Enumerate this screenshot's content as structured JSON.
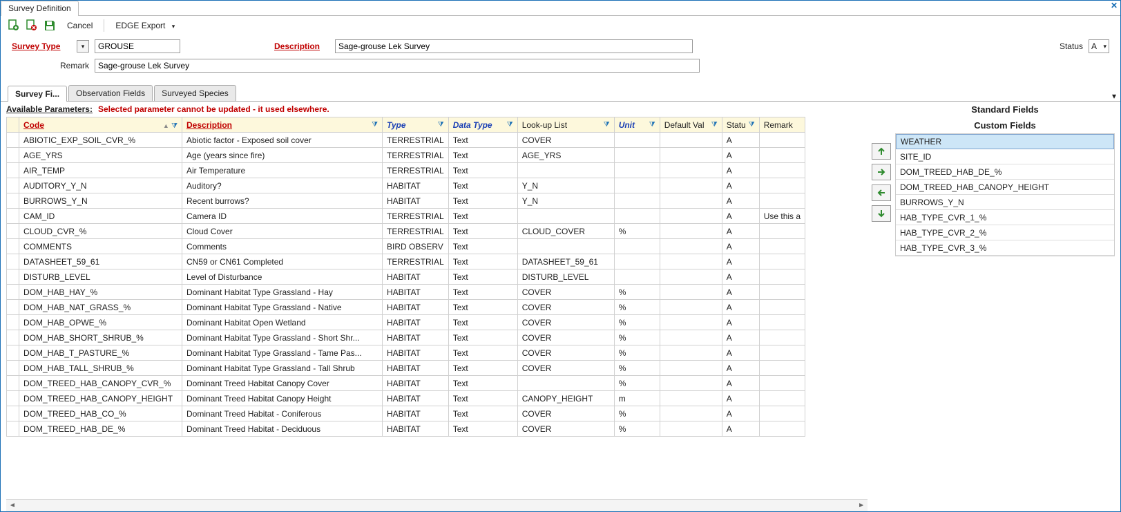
{
  "window": {
    "title": "Survey Definition"
  },
  "toolbar": {
    "cancel": "Cancel",
    "edge_export": "EDGE Export"
  },
  "form": {
    "survey_type_label": "Survey Type",
    "survey_type_value": "GROUSE",
    "description_label": "Description",
    "description_value": "Sage-grouse Lek Survey",
    "remark_label": "Remark",
    "remark_value": "Sage-grouse Lek Survey",
    "status_label": "Status",
    "status_value": "A"
  },
  "tabs": {
    "t1": "Survey Fi...",
    "t2": "Observation Fields",
    "t3": "Surveyed Species"
  },
  "available_parameters_label": "Available Parameters:",
  "warning_text": "Selected parameter cannot be updated - it used elsewhere.",
  "headers": {
    "code": "Code",
    "description": "Description",
    "type": "Type",
    "data_type": "Data Type",
    "lookup": "Look-up List",
    "unit": "Unit",
    "default_val": "Default Val",
    "status": "Statu",
    "remark": "Remark"
  },
  "rows": [
    {
      "code": "ABIOTIC_EXP_SOIL_CVR_%",
      "desc": "Abiotic factor - Exposed soil cover",
      "type": "TERRESTRIAL",
      "dtype": "Text",
      "lookup": "COVER",
      "unit": "",
      "defval": "",
      "status": "A",
      "remark": ""
    },
    {
      "code": "AGE_YRS",
      "desc": "Age (years since fire)",
      "type": "TERRESTRIAL",
      "dtype": "Text",
      "lookup": "AGE_YRS",
      "unit": "",
      "defval": "",
      "status": "A",
      "remark": ""
    },
    {
      "code": "AIR_TEMP",
      "desc": "Air Temperature",
      "type": "TERRESTRIAL",
      "dtype": "Text",
      "lookup": "",
      "unit": "",
      "defval": "",
      "status": "A",
      "remark": ""
    },
    {
      "code": "AUDITORY_Y_N",
      "desc": "Auditory?",
      "type": "HABITAT",
      "dtype": "Text",
      "lookup": "Y_N",
      "unit": "",
      "defval": "",
      "status": "A",
      "remark": ""
    },
    {
      "code": "BURROWS_Y_N",
      "desc": "Recent burrows?",
      "type": "HABITAT",
      "dtype": "Text",
      "lookup": "Y_N",
      "unit": "",
      "defval": "",
      "status": "A",
      "remark": ""
    },
    {
      "code": "CAM_ID",
      "desc": "Camera ID",
      "type": "TERRESTRIAL",
      "dtype": "Text",
      "lookup": "",
      "unit": "",
      "defval": "",
      "status": "A",
      "remark": "Use this a"
    },
    {
      "code": "CLOUD_CVR_%",
      "desc": "Cloud Cover",
      "type": "TERRESTRIAL",
      "dtype": "Text",
      "lookup": "CLOUD_COVER",
      "unit": "%",
      "defval": "",
      "status": "A",
      "remark": ""
    },
    {
      "code": "COMMENTS",
      "desc": "Comments",
      "type": "BIRD OBSERV",
      "dtype": "Text",
      "lookup": "",
      "unit": "",
      "defval": "",
      "status": "A",
      "remark": ""
    },
    {
      "code": "DATASHEET_59_61",
      "desc": "CN59 or CN61 Completed",
      "type": "TERRESTRIAL",
      "dtype": "Text",
      "lookup": "DATASHEET_59_61",
      "unit": "",
      "defval": "",
      "status": "A",
      "remark": ""
    },
    {
      "code": "DISTURB_LEVEL",
      "desc": "Level of Disturbance",
      "type": "HABITAT",
      "dtype": "Text",
      "lookup": "DISTURB_LEVEL",
      "unit": "",
      "defval": "",
      "status": "A",
      "remark": ""
    },
    {
      "code": "DOM_HAB_HAY_%",
      "desc": "Dominant Habitat Type Grassland - Hay",
      "type": "HABITAT",
      "dtype": "Text",
      "lookup": "COVER",
      "unit": "%",
      "defval": "",
      "status": "A",
      "remark": ""
    },
    {
      "code": "DOM_HAB_NAT_GRASS_%",
      "desc": "Dominant Habitat Type Grassland - Native",
      "type": "HABITAT",
      "dtype": "Text",
      "lookup": "COVER",
      "unit": "%",
      "defval": "",
      "status": "A",
      "remark": ""
    },
    {
      "code": "DOM_HAB_OPWE_%",
      "desc": "Dominant Habitat Open Wetland",
      "type": "HABITAT",
      "dtype": "Text",
      "lookup": "COVER",
      "unit": "%",
      "defval": "",
      "status": "A",
      "remark": ""
    },
    {
      "code": "DOM_HAB_SHORT_SHRUB_%",
      "desc": "Dominant Habitat Type Grassland - Short Shr...",
      "type": "HABITAT",
      "dtype": "Text",
      "lookup": "COVER",
      "unit": "%",
      "defval": "",
      "status": "A",
      "remark": ""
    },
    {
      "code": "DOM_HAB_T_PASTURE_%",
      "desc": "Dominant Habitat Type Grassland - Tame Pas...",
      "type": "HABITAT",
      "dtype": "Text",
      "lookup": "COVER",
      "unit": "%",
      "defval": "",
      "status": "A",
      "remark": ""
    },
    {
      "code": "DOM_HAB_TALL_SHRUB_%",
      "desc": "Dominant Habitat Type Grassland - Tall Shrub",
      "type": "HABITAT",
      "dtype": "Text",
      "lookup": "COVER",
      "unit": "%",
      "defval": "",
      "status": "A",
      "remark": ""
    },
    {
      "code": "DOM_TREED_HAB_CANOPY_CVR_%",
      "desc": "Dominant Treed Habitat Canopy Cover",
      "type": "HABITAT",
      "dtype": "Text",
      "lookup": "",
      "unit": "%",
      "defval": "",
      "status": "A",
      "remark": ""
    },
    {
      "code": "DOM_TREED_HAB_CANOPY_HEIGHT",
      "desc": "Dominant Treed Habitat Canopy Height",
      "type": "HABITAT",
      "dtype": "Text",
      "lookup": "CANOPY_HEIGHT",
      "unit": "m",
      "defval": "",
      "status": "A",
      "remark": ""
    },
    {
      "code": "DOM_TREED_HAB_CO_%",
      "desc": "Dominant Treed Habitat - Coniferous",
      "type": "HABITAT",
      "dtype": "Text",
      "lookup": "COVER",
      "unit": "%",
      "defval": "",
      "status": "A",
      "remark": ""
    },
    {
      "code": "DOM_TREED_HAB_DE_%",
      "desc": "Dominant Treed Habitat - Deciduous",
      "type": "HABITAT",
      "dtype": "Text",
      "lookup": "COVER",
      "unit": "%",
      "defval": "",
      "status": "A",
      "remark": ""
    }
  ],
  "right_panel": {
    "standard_header": "Standard Fields",
    "custom_header": "Custom Fields",
    "items": [
      "WEATHER",
      "SITE_ID",
      "DOM_TREED_HAB_DE_%",
      "DOM_TREED_HAB_CANOPY_HEIGHT",
      "BURROWS_Y_N",
      "HAB_TYPE_CVR_1_%",
      "HAB_TYPE_CVR_2_%",
      "HAB_TYPE_CVR_3_%"
    ],
    "selected_index": 0
  },
  "colors": {
    "accent": "#1a6fb5",
    "error": "#c00000",
    "header_bg": "#fdf8dc",
    "selection": "#cde6f7",
    "green": "#2e8b2e"
  }
}
